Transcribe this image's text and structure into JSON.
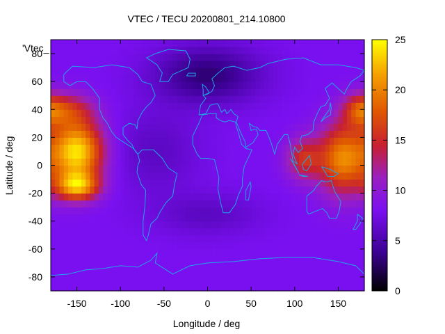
{
  "title": "VTEC / TECU 20200801_214.10800",
  "xlabel": "Longitude / deg",
  "ylabel": "Latitude / deg",
  "key_label": "'Vtec_",
  "x_ticks": [
    "-150",
    "-100",
    "-50",
    "0",
    "50",
    "100",
    "150"
  ],
  "y_ticks": [
    "80",
    "60",
    "40",
    "20",
    "0",
    "-20",
    "-40",
    "-60",
    "-80"
  ],
  "colorbar_ticks": [
    "0",
    "5",
    "10",
    "15",
    "20",
    "25"
  ],
  "coastline_color": "#1fa5e6",
  "chart_data": {
    "type": "heatmap",
    "x_range": [
      -180,
      180
    ],
    "y_range": [
      -90,
      90
    ],
    "color_range": [
      0,
      25
    ],
    "palette": "black-purple-red-orange-yellow",
    "background_level": 8,
    "blobs": [
      {
        "lon": -150,
        "lat": 10,
        "value": 24,
        "spread_lon": 30,
        "spread_lat": 22
      },
      {
        "lon": -150,
        "lat": -15,
        "value": 20,
        "spread_lon": 25,
        "spread_lat": 10
      },
      {
        "lon": 155,
        "lat": 5,
        "value": 20,
        "spread_lon": 28,
        "spread_lat": 25
      },
      {
        "lon": 110,
        "lat": 5,
        "value": 15,
        "spread_lon": 20,
        "spread_lat": 15
      },
      {
        "lon": -160,
        "lat": 40,
        "value": 14,
        "spread_lon": 30,
        "spread_lat": 12
      },
      {
        "lon": 175,
        "lat": 40,
        "value": 15,
        "spread_lon": 20,
        "spread_lat": 12
      }
    ],
    "lows": [
      {
        "lon": 0,
        "lat": 65,
        "value": 3,
        "spread_lon": 60,
        "spread_lat": 20
      },
      {
        "lon": 0,
        "lat": -35,
        "value": 6,
        "spread_lon": 60,
        "spread_lat": 15
      },
      {
        "lon": -60,
        "lat": 10,
        "value": 6,
        "spread_lon": 50,
        "spread_lat": 30
      }
    ]
  }
}
